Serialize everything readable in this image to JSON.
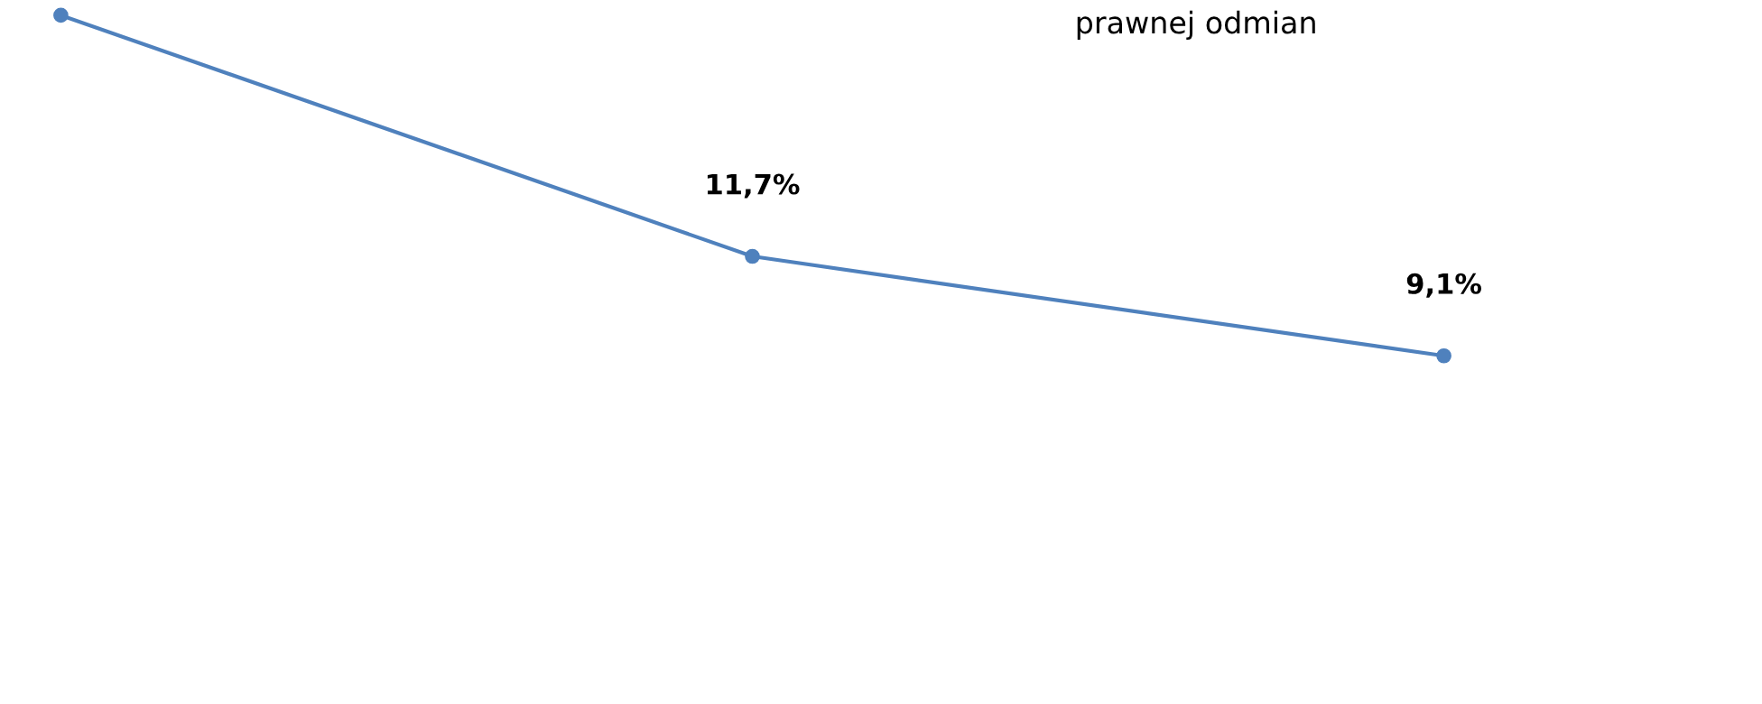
{
  "chart_data": {
    "type": "line",
    "title": "prawnej odmian",
    "categories": [
      null,
      null,
      null
    ],
    "series": [
      {
        "color": "#4f81bd",
        "values": [
          18.0,
          11.7,
          9.1
        ],
        "value_labels": [
          null,
          "11,7%",
          "9,1%"
        ]
      }
    ],
    "ylim": [
      0,
      18.4
    ],
    "marker": "circle",
    "line_style": "solid",
    "grid": false,
    "legend": false
  }
}
